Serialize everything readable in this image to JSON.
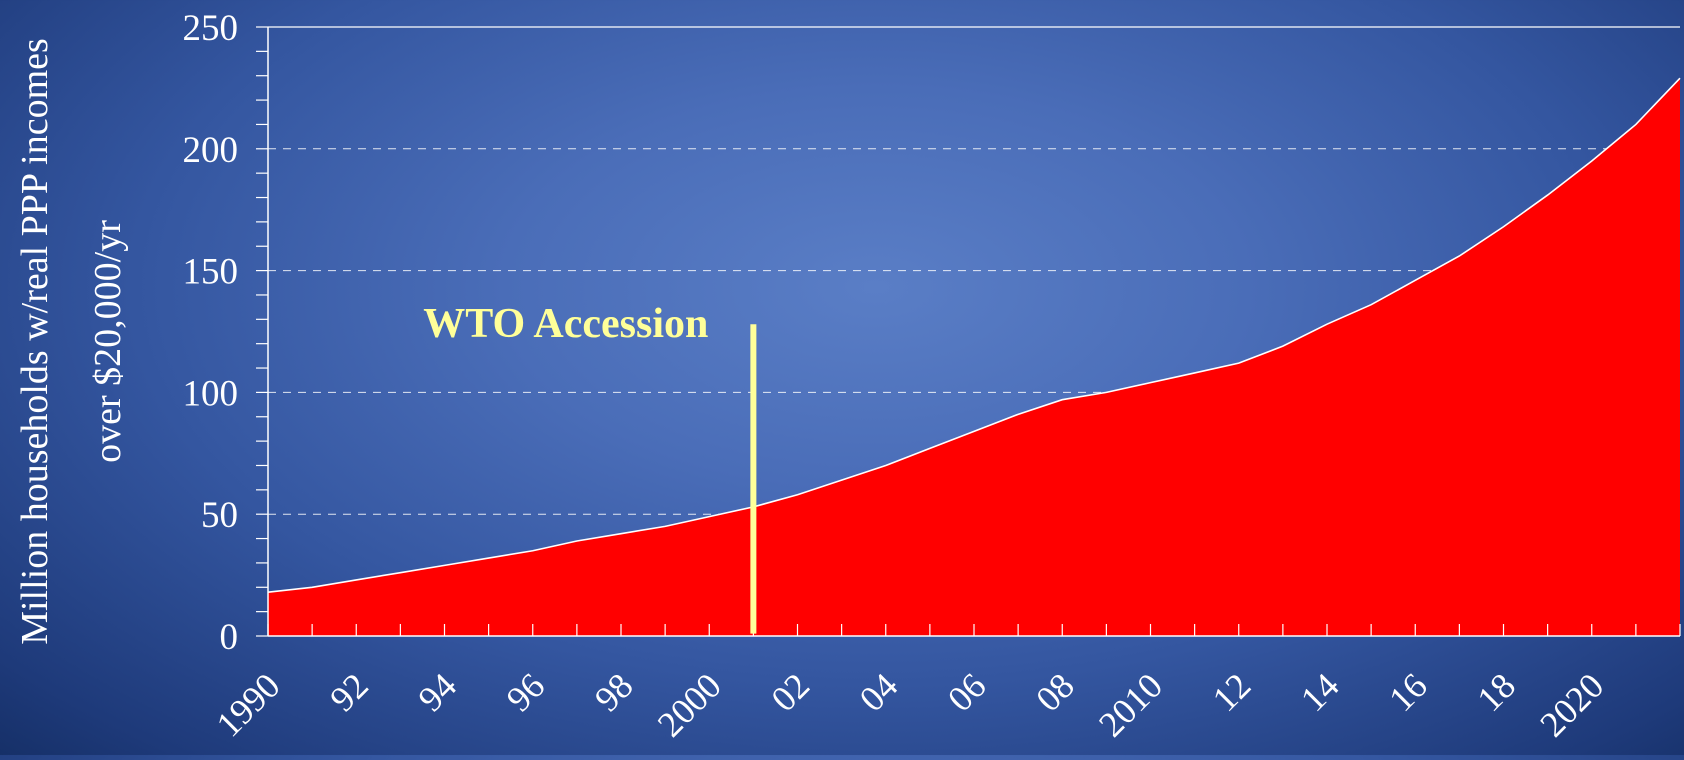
{
  "chart_data": {
    "type": "area",
    "title": "",
    "ylabel_line1": "Million households w/real PPP incomes",
    "ylabel_line2": "over $20,000/yr",
    "xlabel": "",
    "ylim": [
      0,
      250
    ],
    "y_ticks": [
      0,
      50,
      100,
      150,
      200,
      250
    ],
    "xlim": [
      1990,
      2022
    ],
    "x_tick_labels": [
      {
        "year": 1990,
        "label": "1990"
      },
      {
        "year": 1992,
        "label": "92"
      },
      {
        "year": 1994,
        "label": "94"
      },
      {
        "year": 1996,
        "label": "96"
      },
      {
        "year": 1998,
        "label": "98"
      },
      {
        "year": 2000,
        "label": "2000"
      },
      {
        "year": 2002,
        "label": "02"
      },
      {
        "year": 2004,
        "label": "04"
      },
      {
        "year": 2006,
        "label": "06"
      },
      {
        "year": 2008,
        "label": "08"
      },
      {
        "year": 2010,
        "label": "2010"
      },
      {
        "year": 2012,
        "label": "12"
      },
      {
        "year": 2014,
        "label": "14"
      },
      {
        "year": 2016,
        "label": "16"
      },
      {
        "year": 2018,
        "label": "18"
      },
      {
        "year": 2020,
        "label": "2020"
      }
    ],
    "gridlines": [
      50,
      100,
      150,
      200
    ],
    "series": [
      {
        "color": "#ff0000",
        "x": [
          1990,
          1991,
          1992,
          1993,
          1994,
          1995,
          1996,
          1997,
          1998,
          1999,
          2000,
          2001,
          2002,
          2003,
          2004,
          2005,
          2006,
          2007,
          2008,
          2009,
          2010,
          2011,
          2012,
          2013,
          2014,
          2015,
          2016,
          2017,
          2018,
          2019,
          2020,
          2021,
          2022
        ],
        "values": [
          18,
          20,
          23,
          26,
          29,
          32,
          35,
          39,
          42,
          45,
          49,
          53,
          58,
          64,
          70,
          77,
          84,
          91,
          97,
          100,
          104,
          108,
          112,
          119,
          128,
          136,
          146,
          156,
          168,
          181,
          195,
          210,
          229
        ]
      }
    ],
    "annotation": {
      "label": "WTO Accession",
      "year": 2001,
      "top_value": 128,
      "color": "#ffff99"
    }
  }
}
